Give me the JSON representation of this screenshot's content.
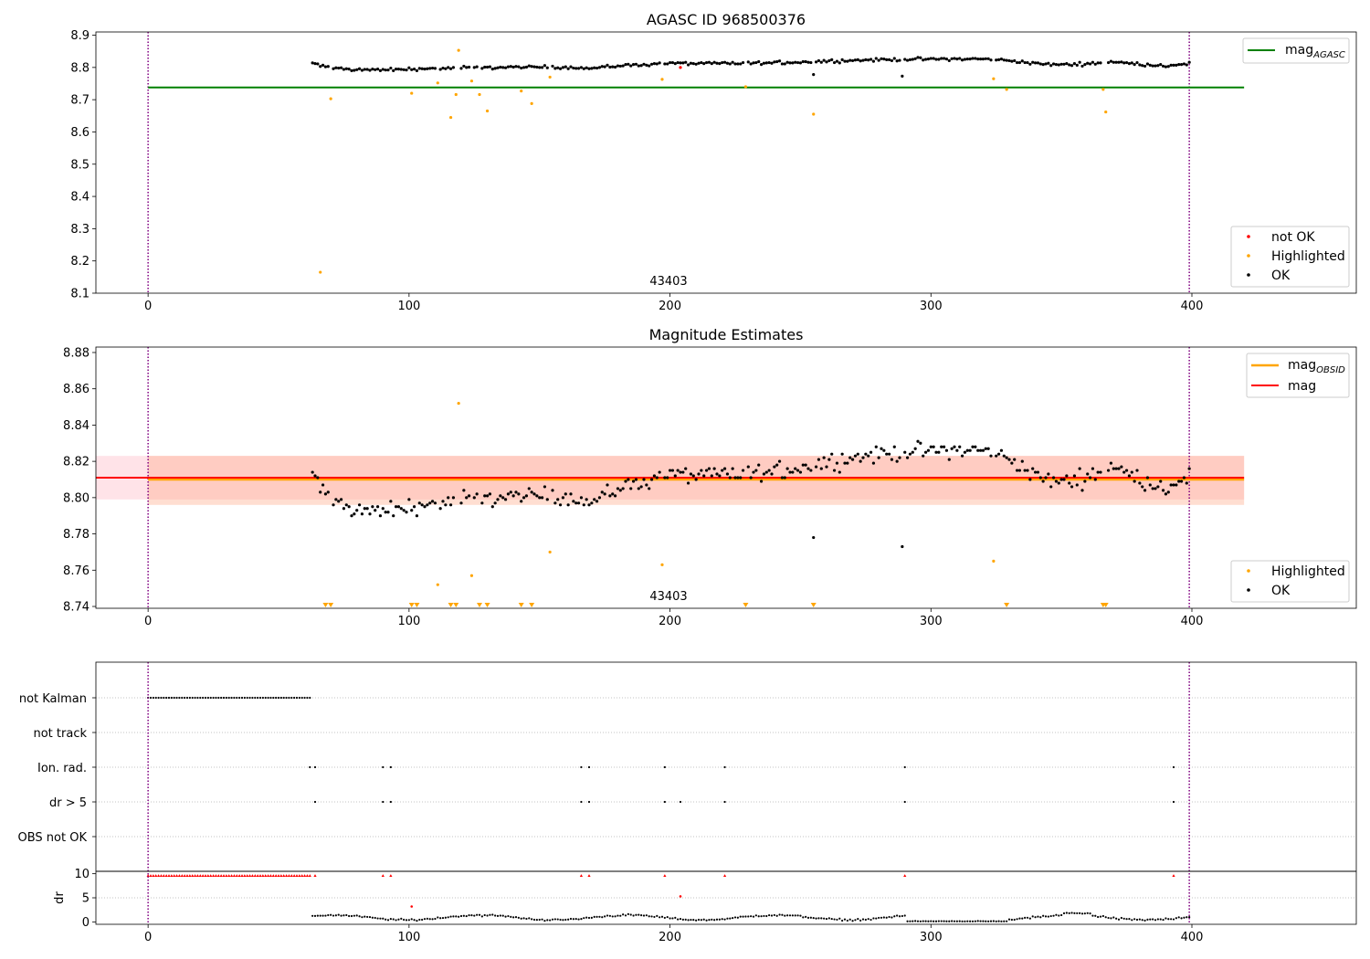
{
  "chart_data": [
    {
      "type": "scatter",
      "title": "AGASC ID 968500376",
      "xlim": [
        -20,
        463
      ],
      "ylim": [
        8.1,
        8.91
      ],
      "xticks": [
        0,
        100,
        200,
        300,
        400
      ],
      "yticks": [
        8.1,
        8.2,
        8.3,
        8.4,
        8.5,
        8.6,
        8.7,
        8.8,
        8.9
      ],
      "ytick_labels": [
        "8.1",
        "8.2",
        "8.3",
        "8.4",
        "8.5",
        "8.6",
        "8.7",
        "8.8",
        "8.9"
      ],
      "annotation": "43403",
      "vlines": [
        0,
        399
      ],
      "colors": {
        "ok": "#000000",
        "highlighted": "#ffa500",
        "not_ok": "#ff0000",
        "agasc_line": "#008000",
        "vline": "#800080"
      },
      "agasc_mag": 8.738,
      "agasc_line_x": [
        0,
        420
      ],
      "legend_line": {
        "label_main": "mag",
        "label_sub": "AGASC"
      },
      "legend_points": [
        "not OK",
        "Highlighted",
        "OK"
      ],
      "highlighted_points": [
        [
          66,
          8.165
        ],
        [
          70,
          8.703
        ],
        [
          101,
          8.72
        ],
        [
          111,
          8.752
        ],
        [
          116,
          8.645
        ],
        [
          118,
          8.716
        ],
        [
          119,
          8.853
        ],
        [
          124,
          8.758
        ],
        [
          127,
          8.716
        ],
        [
          130,
          8.665
        ],
        [
          143,
          8.727
        ],
        [
          147,
          8.688
        ],
        [
          154,
          8.77
        ],
        [
          197,
          8.763
        ],
        [
          229,
          8.74
        ],
        [
          255,
          8.655
        ],
        [
          324,
          8.765
        ],
        [
          329,
          8.732
        ],
        [
          366,
          8.732
        ],
        [
          367,
          8.662
        ]
      ],
      "not_ok_points": [
        [
          204,
          8.8
        ]
      ]
    },
    {
      "type": "scatter",
      "title": "Magnitude Estimates",
      "xlim": [
        -20,
        463
      ],
      "ylim": [
        8.739,
        8.883
      ],
      "xticks": [
        0,
        100,
        200,
        300,
        400
      ],
      "yticks": [
        8.74,
        8.76,
        8.78,
        8.8,
        8.82,
        8.84,
        8.86,
        8.88
      ],
      "ytick_labels": [
        "8.74",
        "8.76",
        "8.78",
        "8.80",
        "8.82",
        "8.84",
        "8.86",
        "8.88"
      ],
      "annotation": "43403",
      "vlines": [
        0,
        399
      ],
      "mag": 8.811,
      "mag_band": [
        8.799,
        8.823
      ],
      "mag_obsid": 8.81,
      "mag_obsid_band": [
        8.796,
        8.823
      ],
      "lines_x": [
        0,
        420
      ],
      "band_x_full": [
        -20,
        420
      ],
      "colors": {
        "mag": "#ff0000",
        "mag_obsid": "#ffa500",
        "band_pink": "#ffc0cb",
        "band_orange": "#ffa07a",
        "ok": "#000000",
        "highlighted": "#ffa500",
        "vline": "#800080"
      },
      "legend_lines": [
        {
          "label_main": "mag",
          "label_sub": "OBSID"
        },
        {
          "label_main": "mag",
          "label_sub": ""
        }
      ],
      "legend_points": [
        "Highlighted",
        "OK"
      ],
      "highlighted_points": [
        [
          111,
          8.752
        ],
        [
          119,
          8.852
        ],
        [
          124,
          8.757
        ],
        [
          154,
          8.77
        ],
        [
          197,
          8.763
        ],
        [
          324,
          8.765
        ]
      ],
      "below_range_x": [
        68,
        70,
        101,
        103,
        116,
        118,
        127,
        130,
        143,
        147,
        229,
        255,
        329,
        366,
        367
      ]
    },
    {
      "type": "scatter",
      "xlim": [
        -20,
        463
      ],
      "xticks": [
        0,
        100,
        200,
        300,
        400
      ],
      "vlines": [
        0,
        399
      ],
      "categories": [
        "not Kalman",
        "not track",
        "Ion. rad.",
        "dr > 5",
        "OBS not OK"
      ],
      "flag_x_not_kalman_range": [
        0,
        62
      ],
      "flag_x_ion_rad": [
        62,
        64,
        90,
        93,
        166,
        169,
        198,
        221,
        290,
        393
      ],
      "flag_x_dr5": [
        64,
        90,
        93,
        166,
        169,
        198,
        204,
        221,
        290,
        393
      ],
      "flag_x_obs_not_ok": [],
      "dr_ylabel": "dr",
      "dr_ylim": [
        -0.5,
        10.5
      ],
      "dr_yticks": [
        0,
        5,
        10
      ],
      "dr_ytick_labels": [
        "0",
        "5",
        "10"
      ],
      "dr_clipped_x": [
        64,
        90,
        93,
        166,
        169,
        198,
        221,
        290,
        393
      ],
      "dr_red_points": [
        [
          101,
          3.2
        ],
        [
          204,
          5.3
        ]
      ],
      "colors": {
        "flag": "#000000",
        "grid": "#b0b0b0",
        "dr_ok": "#000000",
        "dr_clipped": "#ff0000",
        "vline": "#800080"
      }
    }
  ]
}
